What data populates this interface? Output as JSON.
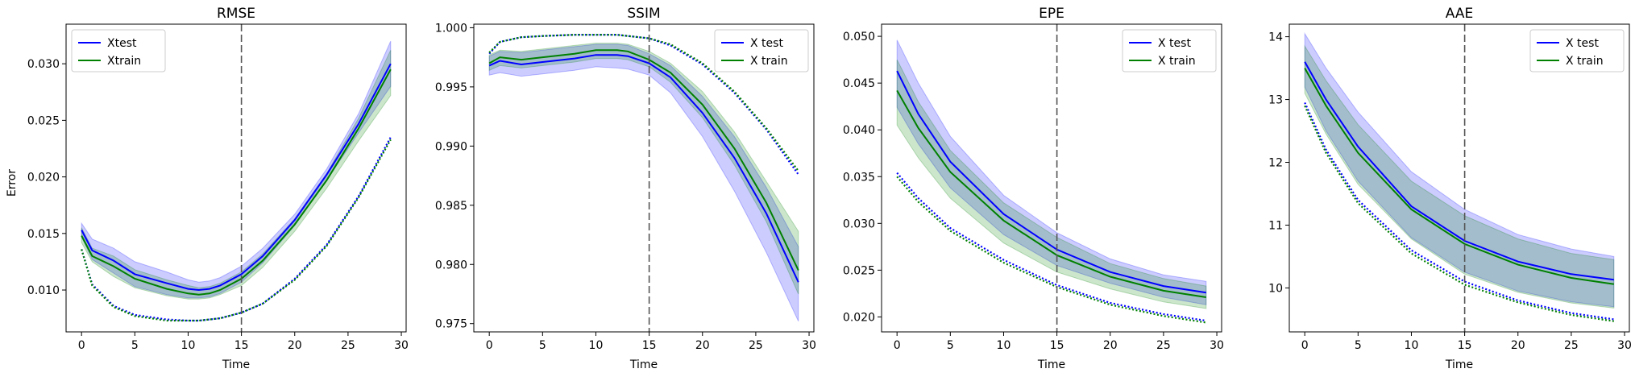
{
  "figure": {
    "xlabel": "Time",
    "ylabel": "Error"
  },
  "colors": {
    "test": "#0000ff",
    "train": "#008000",
    "vline": "#555555"
  },
  "chart_data": [
    {
      "type": "line",
      "title": "RMSE",
      "xlabel": "Time",
      "ylabel": "Error",
      "xlim": [
        -1.45,
        30.45
      ],
      "ylim": [
        0.0063,
        0.0335
      ],
      "xticks": [
        0,
        5,
        10,
        15,
        20,
        25,
        30
      ],
      "xtick_labels": [
        "0",
        "5",
        "10",
        "15",
        "20",
        "25",
        "30"
      ],
      "yticks": [
        0.01,
        0.015,
        0.02,
        0.025,
        0.03
      ],
      "ytick_labels": [
        "0.010",
        "0.015",
        "0.020",
        "0.025",
        "0.030"
      ],
      "vline_x": 15,
      "legend_position": "upper-left",
      "legend": [
        "Xtest",
        "Xtrain"
      ],
      "x": [
        0,
        1,
        3,
        5,
        8,
        10,
        11,
        12,
        13,
        15,
        17,
        20,
        23,
        26,
        29
      ],
      "series": [
        {
          "name": "Xtest",
          "role": "mean",
          "group": "test",
          "values": [
            0.0153,
            0.0135,
            0.0126,
            0.0114,
            0.0106,
            0.0101,
            0.01,
            0.0101,
            0.0104,
            0.0114,
            0.013,
            0.0162,
            0.0202,
            0.0247,
            0.03
          ]
        },
        {
          "name": "Xtrain",
          "role": "mean",
          "group": "train",
          "values": [
            0.0148,
            0.013,
            0.0121,
            0.011,
            0.0101,
            0.0097,
            0.0096,
            0.0097,
            0.01,
            0.011,
            0.0126,
            0.0158,
            0.0197,
            0.0243,
            0.0295
          ]
        }
      ],
      "bands": [
        {
          "group": "test",
          "lower": [
            0.0147,
            0.0127,
            0.0115,
            0.0103,
            0.0096,
            0.0093,
            0.0093,
            0.0094,
            0.0097,
            0.0107,
            0.0124,
            0.0157,
            0.0197,
            0.0239,
            0.028
          ],
          "upper": [
            0.0159,
            0.0145,
            0.0137,
            0.0125,
            0.0116,
            0.0109,
            0.0107,
            0.0108,
            0.0111,
            0.0121,
            0.0137,
            0.0167,
            0.0207,
            0.0256,
            0.032
          ]
        },
        {
          "group": "train",
          "lower": [
            0.0142,
            0.0125,
            0.0112,
            0.0102,
            0.0095,
            0.0092,
            0.0092,
            0.0093,
            0.0096,
            0.0104,
            0.012,
            0.0152,
            0.019,
            0.0232,
            0.0272
          ],
          "upper": [
            0.0155,
            0.0137,
            0.013,
            0.0118,
            0.0109,
            0.0104,
            0.0102,
            0.0103,
            0.0106,
            0.0116,
            0.0132,
            0.0163,
            0.0203,
            0.0252,
            0.0312
          ]
        }
      ],
      "dotted": [
        {
          "group": "test",
          "values": [
            0.0136,
            0.0105,
            0.0086,
            0.0078,
            0.0074,
            0.0073,
            0.0073,
            0.0074,
            0.0075,
            0.008,
            0.0088,
            0.011,
            0.014,
            0.0183,
            0.0235
          ]
        },
        {
          "group": "train",
          "values": [
            0.0136,
            0.0104,
            0.0085,
            0.0077,
            0.0073,
            0.0073,
            0.0073,
            0.0074,
            0.0075,
            0.008,
            0.0088,
            0.0109,
            0.0139,
            0.0182,
            0.0233
          ]
        }
      ]
    },
    {
      "type": "line",
      "title": "SSIM",
      "xlabel": "Time",
      "ylabel": "",
      "xlim": [
        -1.45,
        30.45
      ],
      "ylim": [
        0.9743,
        1.0003
      ],
      "xticks": [
        0,
        5,
        10,
        15,
        20,
        25,
        30
      ],
      "xtick_labels": [
        "0",
        "5",
        "10",
        "15",
        "20",
        "25",
        "30"
      ],
      "yticks": [
        0.975,
        0.98,
        0.985,
        0.99,
        0.995,
        1.0
      ],
      "ytick_labels": [
        "0.975",
        "0.980",
        "0.985",
        "0.990",
        "0.995",
        "1.000"
      ],
      "vline_x": 15,
      "legend_position": "upper-right",
      "legend": [
        "X test",
        "X train"
      ],
      "x": [
        0,
        1,
        3,
        5,
        8,
        10,
        12,
        13,
        15,
        17,
        20,
        23,
        26,
        29
      ],
      "series": [
        {
          "name": "X test",
          "role": "mean",
          "group": "test",
          "values": [
            0.9968,
            0.9972,
            0.9969,
            0.9971,
            0.9974,
            0.9977,
            0.9977,
            0.9976,
            0.997,
            0.9958,
            0.9928,
            0.989,
            0.9843,
            0.9785
          ]
        },
        {
          "name": "X train",
          "role": "mean",
          "group": "train",
          "values": [
            0.997,
            0.9975,
            0.9973,
            0.9975,
            0.9978,
            0.9981,
            0.9981,
            0.998,
            0.9973,
            0.9962,
            0.9935,
            0.9898,
            0.9852,
            0.9795
          ]
        }
      ],
      "bands": [
        {
          "group": "test",
          "lower": [
            0.996,
            0.9962,
            0.9959,
            0.9961,
            0.9964,
            0.9967,
            0.9966,
            0.9965,
            0.996,
            0.9945,
            0.9908,
            0.9862,
            0.981,
            0.9752
          ],
          "upper": [
            0.9976,
            0.998,
            0.9979,
            0.9981,
            0.9984,
            0.9986,
            0.9986,
            0.9985,
            0.9978,
            0.9968,
            0.9942,
            0.9908,
            0.9865,
            0.9815
          ]
        },
        {
          "group": "train",
          "lower": [
            0.9964,
            0.9968,
            0.9966,
            0.9968,
            0.9971,
            0.9974,
            0.9974,
            0.9973,
            0.9967,
            0.9954,
            0.9924,
            0.9884,
            0.9836,
            0.9775
          ],
          "upper": [
            0.9977,
            0.9981,
            0.998,
            0.9982,
            0.9985,
            0.9987,
            0.9987,
            0.9986,
            0.998,
            0.997,
            0.9946,
            0.9912,
            0.987,
            0.9828
          ]
        }
      ],
      "dotted": [
        {
          "group": "test",
          "values": [
            0.9978,
            0.9988,
            0.9992,
            0.9993,
            0.9994,
            0.9994,
            0.9994,
            0.9993,
            0.9991,
            0.9985,
            0.9969,
            0.9945,
            0.9914,
            0.9876
          ]
        },
        {
          "group": "train",
          "values": [
            0.9979,
            0.9988,
            0.9992,
            0.9993,
            0.9994,
            0.9994,
            0.9994,
            0.9993,
            0.9991,
            0.9986,
            0.997,
            0.9946,
            0.9915,
            0.9879
          ]
        }
      ]
    },
    {
      "type": "line",
      "title": "EPE",
      "xlabel": "Time",
      "ylabel": "",
      "xlim": [
        -1.45,
        30.45
      ],
      "ylim": [
        0.0184,
        0.0513
      ],
      "xticks": [
        0,
        5,
        10,
        15,
        20,
        25,
        30
      ],
      "xtick_labels": [
        "0",
        "5",
        "10",
        "15",
        "20",
        "25",
        "30"
      ],
      "yticks": [
        0.02,
        0.025,
        0.03,
        0.035,
        0.04,
        0.045,
        0.05
      ],
      "ytick_labels": [
        "0.020",
        "0.025",
        "0.030",
        "0.035",
        "0.040",
        "0.045",
        "0.050"
      ],
      "vline_x": 15,
      "legend_position": "upper-right",
      "legend": [
        "X test",
        "X train"
      ],
      "x": [
        0,
        2,
        5,
        10,
        15,
        20,
        25,
        29
      ],
      "series": [
        {
          "name": "X test",
          "role": "mean",
          "group": "test",
          "values": [
            0.0463,
            0.0417,
            0.0366,
            0.031,
            0.0272,
            0.0248,
            0.0233,
            0.0226
          ]
        },
        {
          "name": "X train",
          "role": "mean",
          "group": "train",
          "values": [
            0.0442,
            0.0402,
            0.0355,
            0.0303,
            0.0266,
            0.0243,
            0.0228,
            0.0221
          ]
        }
      ],
      "bands": [
        {
          "group": "test",
          "lower": [
            0.0424,
            0.0385,
            0.0338,
            0.0288,
            0.0255,
            0.0236,
            0.0221,
            0.0213
          ],
          "upper": [
            0.0496,
            0.045,
            0.0393,
            0.033,
            0.029,
            0.0262,
            0.0245,
            0.0238
          ]
        },
        {
          "group": "train",
          "lower": [
            0.0405,
            0.037,
            0.0327,
            0.0279,
            0.0248,
            0.023,
            0.0216,
            0.0209
          ],
          "upper": [
            0.0475,
            0.043,
            0.0378,
            0.0322,
            0.0285,
            0.0257,
            0.0241,
            0.0233
          ]
        }
      ],
      "dotted": [
        {
          "group": "test",
          "values": [
            0.0354,
            0.0327,
            0.0295,
            0.0261,
            0.0234,
            0.0215,
            0.0203,
            0.0196
          ]
        },
        {
          "group": "train",
          "values": [
            0.035,
            0.0323,
            0.0292,
            0.0258,
            0.0232,
            0.0213,
            0.0201,
            0.0194
          ]
        }
      ]
    },
    {
      "type": "line",
      "title": "AAE",
      "xlabel": "Time",
      "ylabel": "",
      "xlim": [
        -1.45,
        30.45
      ],
      "ylim": [
        9.3,
        14.2
      ],
      "xticks": [
        0,
        5,
        10,
        15,
        20,
        25,
        30
      ],
      "xtick_labels": [
        "0",
        "5",
        "10",
        "15",
        "20",
        "25",
        "30"
      ],
      "yticks": [
        10,
        11,
        12,
        13,
        14
      ],
      "ytick_labels": [
        "10",
        "11",
        "12",
        "13",
        "14"
      ],
      "vline_x": 15,
      "legend_position": "upper-right",
      "legend": [
        "X test",
        "X train"
      ],
      "x": [
        0,
        2,
        5,
        10,
        15,
        20,
        25,
        29
      ],
      "series": [
        {
          "name": "X test",
          "role": "mean",
          "group": "test",
          "values": [
            13.6,
            13.0,
            12.25,
            11.3,
            10.75,
            10.42,
            10.22,
            10.13
          ]
        },
        {
          "name": "X train",
          "role": "mean",
          "group": "train",
          "values": [
            13.5,
            12.9,
            12.15,
            11.25,
            10.7,
            10.37,
            10.16,
            10.06
          ]
        }
      ],
      "bands": [
        {
          "group": "test",
          "lower": [
            13.2,
            12.5,
            11.7,
            10.8,
            10.25,
            9.95,
            9.78,
            9.7
          ],
          "upper": [
            14.05,
            13.5,
            12.8,
            11.85,
            11.25,
            10.85,
            10.62,
            10.5
          ]
        },
        {
          "group": "train",
          "lower": [
            13.1,
            12.45,
            11.65,
            10.78,
            10.22,
            9.93,
            9.76,
            9.68
          ],
          "upper": [
            13.85,
            13.3,
            12.6,
            11.7,
            11.15,
            10.78,
            10.55,
            10.45
          ]
        }
      ],
      "dotted": [
        {
          "group": "test",
          "values": [
            12.95,
            12.2,
            11.4,
            10.6,
            10.1,
            9.8,
            9.6,
            9.5
          ]
        },
        {
          "group": "train",
          "values": [
            12.9,
            12.15,
            11.35,
            10.55,
            10.05,
            9.77,
            9.57,
            9.47
          ]
        }
      ]
    }
  ]
}
